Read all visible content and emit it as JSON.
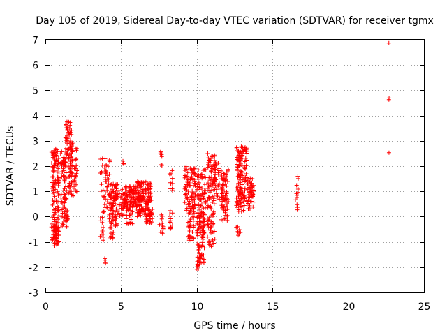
{
  "chart_data": {
    "type": "scatter",
    "title": "Day 105 of 2019, Sidereal Day-to-day VTEC variation (SDTVAR) for receiver tgmx",
    "xlabel": "GPS time / hours",
    "ylabel": "SDTVAR / TECUs",
    "xlim": [
      0,
      25
    ],
    "ylim": [
      -3,
      7
    ],
    "x_ticks": [
      "0",
      "5",
      "10",
      "15",
      "20",
      "25"
    ],
    "y_ticks": [
      "-3",
      "-2",
      "-1",
      "0",
      "1",
      "2",
      "3",
      "4",
      "5",
      "6",
      "7"
    ],
    "grid": true,
    "marker": "+",
    "color": "#ff0000",
    "series": [
      {
        "name": "SDTVAR",
        "clusters": [
          {
            "x": [
              0.4,
              0.9
            ],
            "y": [
              -1.2,
              2.7
            ],
            "n": 150
          },
          {
            "x": [
              0.5,
              0.9
            ],
            "y": [
              -0.9,
              -0.4
            ],
            "n": 30
          },
          {
            "x": [
              1.0,
              1.4
            ],
            "y": [
              0.5,
              2.6
            ],
            "n": 60
          },
          {
            "x": [
              1.1,
              1.5
            ],
            "y": [
              -0.4,
              0.4
            ],
            "n": 30
          },
          {
            "x": [
              1.3,
              1.8
            ],
            "y": [
              2.4,
              3.8
            ],
            "n": 50
          },
          {
            "x": [
              1.5,
              2.1
            ],
            "y": [
              0.8,
              2.7
            ],
            "n": 80
          },
          {
            "x": [
              3.6,
              3.9
            ],
            "y": [
              -1.1,
              2.4
            ],
            "n": 30
          },
          {
            "x": [
              3.9,
              4.3
            ],
            "y": [
              0.2,
              2.3
            ],
            "n": 40
          },
          {
            "x": [
              3.9,
              4.0
            ],
            "y": [
              -1.85,
              -1.65
            ],
            "n": 6
          },
          {
            "x": [
              4.2,
              4.8
            ],
            "y": [
              -0.5,
              1.3
            ],
            "n": 90
          },
          {
            "x": [
              4.3,
              4.5
            ],
            "y": [
              -1.0,
              -0.4
            ],
            "n": 10
          },
          {
            "x": [
              4.8,
              5.2
            ],
            "y": [
              0.0,
              1.1
            ],
            "n": 30
          },
          {
            "x": [
              5.1,
              5.2
            ],
            "y": [
              1.9,
              2.2
            ],
            "n": 4
          },
          {
            "x": [
              5.2,
              6.0
            ],
            "y": [
              0.4,
              1.2
            ],
            "n": 90
          },
          {
            "x": [
              5.3,
              5.8
            ],
            "y": [
              -0.3,
              0.4
            ],
            "n": 30
          },
          {
            "x": [
              6.0,
              7.0
            ],
            "y": [
              0.0,
              1.4
            ],
            "n": 160
          },
          {
            "x": [
              6.6,
              7.1
            ],
            "y": [
              -0.3,
              0.3
            ],
            "n": 25
          },
          {
            "x": [
              7.5,
              7.8
            ],
            "y": [
              -0.7,
              0.1
            ],
            "n": 12
          },
          {
            "x": [
              7.6,
              7.7
            ],
            "y": [
              2.0,
              2.6
            ],
            "n": 8
          },
          {
            "x": [
              8.2,
              8.4
            ],
            "y": [
              -0.5,
              2.1
            ],
            "n": 25
          },
          {
            "x": [
              9.2,
              9.9
            ],
            "y": [
              0.1,
              2.0
            ],
            "n": 100
          },
          {
            "x": [
              9.4,
              9.8
            ],
            "y": [
              -1.0,
              0.2
            ],
            "n": 30
          },
          {
            "x": [
              10.0,
              10.5
            ],
            "y": [
              -2.1,
              -1.0
            ],
            "n": 40
          },
          {
            "x": [
              10.0,
              10.6
            ],
            "y": [
              -0.9,
              1.9
            ],
            "n": 120
          },
          {
            "x": [
              10.7,
              11.2
            ],
            "y": [
              -1.2,
              2.6
            ],
            "n": 100
          },
          {
            "x": [
              11.1,
              11.5
            ],
            "y": [
              0.6,
              2.4
            ],
            "n": 40
          },
          {
            "x": [
              11.6,
              12.1
            ],
            "y": [
              -0.2,
              1.9
            ],
            "n": 80
          },
          {
            "x": [
              12.6,
              13.3
            ],
            "y": [
              0.2,
              2.8
            ],
            "n": 140
          },
          {
            "x": [
              12.6,
              12.9
            ],
            "y": [
              -0.8,
              -0.3
            ],
            "n": 8
          },
          {
            "x": [
              13.3,
              13.8
            ],
            "y": [
              0.3,
              1.6
            ],
            "n": 50
          },
          {
            "x": [
              16.5,
              16.7
            ],
            "y": [
              0.2,
              1.6
            ],
            "n": 12
          },
          {
            "x": [
              22.65,
              22.7
            ],
            "y": [
              2.5,
              2.55
            ],
            "n": 1
          },
          {
            "x": [
              22.65,
              22.7
            ],
            "y": [
              4.6,
              4.7
            ],
            "n": 2
          },
          {
            "x": [
              22.65,
              22.7
            ],
            "y": [
              6.85,
              6.9
            ],
            "n": 1
          }
        ]
      }
    ]
  }
}
